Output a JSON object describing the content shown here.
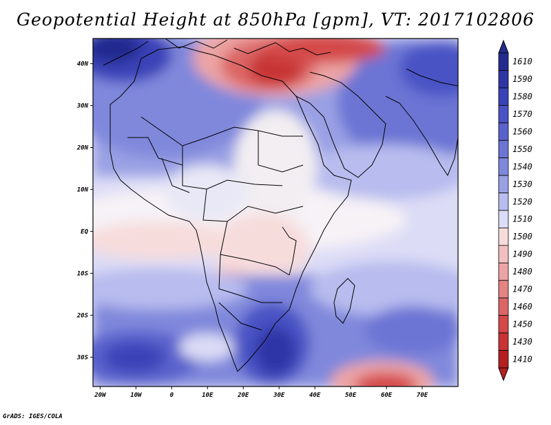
{
  "title": "Geopotential Height at 850hPa [gpm], VT: 2017102806",
  "credit": "GrADS: IGES/COLA",
  "map": {
    "variable": "Geopotential Height",
    "level": "850hPa",
    "units": "gpm",
    "valid_time": "2017102806",
    "lon_range": [
      -22,
      80
    ],
    "lat_range": [
      -37,
      46
    ],
    "lon_ticks": [
      {
        "lon": -20,
        "label": "20W"
      },
      {
        "lon": -10,
        "label": "10W"
      },
      {
        "lon": 0,
        "label": "0"
      },
      {
        "lon": 10,
        "label": "10E"
      },
      {
        "lon": 20,
        "label": "20E"
      },
      {
        "lon": 30,
        "label": "30E"
      },
      {
        "lon": 40,
        "label": "40E"
      },
      {
        "lon": 50,
        "label": "50E"
      },
      {
        "lon": 60,
        "label": "60E"
      },
      {
        "lon": 70,
        "label": "70E"
      }
    ],
    "lat_ticks": [
      {
        "lat": 40,
        "label": "40N"
      },
      {
        "lat": 30,
        "label": "30N"
      },
      {
        "lat": 20,
        "label": "20N"
      },
      {
        "lat": 10,
        "label": "10N"
      },
      {
        "lat": 0,
        "label": "EQ"
      },
      {
        "lat": -10,
        "label": "10S"
      },
      {
        "lat": -20,
        "label": "20S"
      },
      {
        "lat": -30,
        "label": "30S"
      }
    ]
  },
  "colorbar": {
    "levels": [
      "1610",
      "1590",
      "1580",
      "1570",
      "1560",
      "1550",
      "1540",
      "1530",
      "1520",
      "1510",
      "1500",
      "1490",
      "1480",
      "1470",
      "1460",
      "1450",
      "1430",
      "1410"
    ],
    "colors": [
      "#232b8f",
      "#2e36a6",
      "#3a42b8",
      "#4a52c4",
      "#5a62cc",
      "#6c74d4",
      "#8088dc",
      "#9aa0e4",
      "#b8bcee",
      "#dcdcf6",
      "#f7dcdc",
      "#f2c0c0",
      "#eca4a4",
      "#e48484",
      "#dc6666",
      "#d44848",
      "#c83434",
      "#b42020"
    ]
  }
}
